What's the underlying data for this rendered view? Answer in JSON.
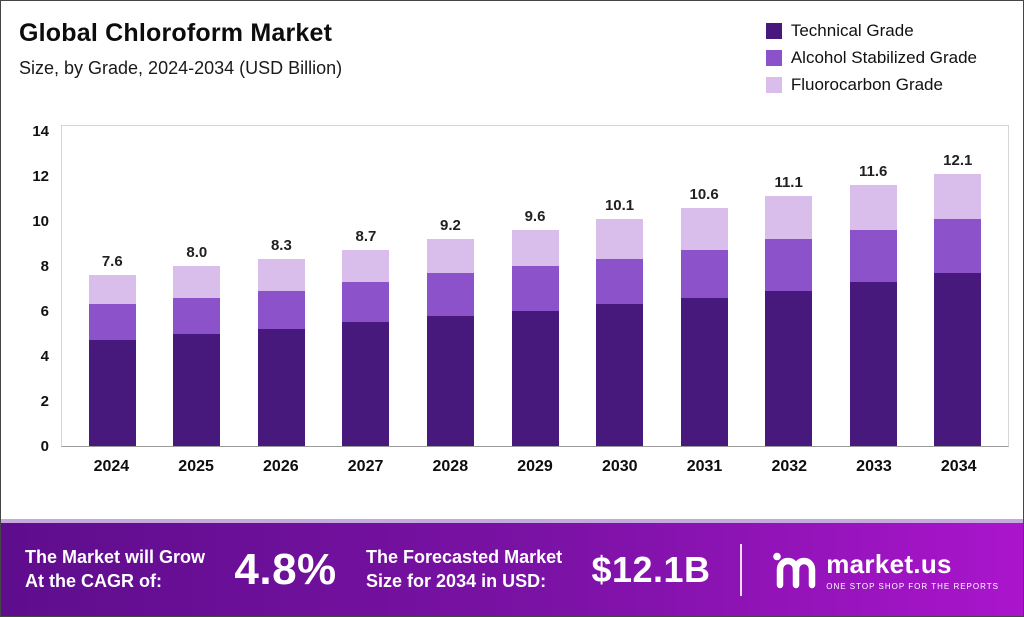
{
  "header": {
    "title": "Global Chloroform Market",
    "subtitle": "Size, by Grade, 2024-2034 (USD Billion)"
  },
  "legend": [
    {
      "label": "Technical Grade",
      "color": "#47197d"
    },
    {
      "label": "Alcohol Stabilized Grade",
      "color": "#8c52c9"
    },
    {
      "label": "Fluorocarbon Grade",
      "color": "#d9bdea"
    }
  ],
  "chart_data": {
    "type": "bar",
    "stacked": true,
    "title": "Global Chloroform Market",
    "subtitle": "Size, by Grade, 2024-2034 (USD Billion)",
    "xlabel": "",
    "ylabel": "USD Billion",
    "ylim": [
      0,
      14
    ],
    "yticks": [
      0,
      2,
      4,
      6,
      8,
      10,
      12,
      14
    ],
    "grid": false,
    "legend_position": "top-right",
    "categories": [
      "2024",
      "2025",
      "2026",
      "2027",
      "2028",
      "2029",
      "2030",
      "2031",
      "2032",
      "2033",
      "2034"
    ],
    "series": [
      {
        "name": "Technical Grade",
        "color": "#47197d",
        "values": [
          4.7,
          5.0,
          5.2,
          5.5,
          5.8,
          6.0,
          6.3,
          6.6,
          6.9,
          7.3,
          7.7
        ]
      },
      {
        "name": "Alcohol Stabilized Grade",
        "color": "#8c52c9",
        "values": [
          1.6,
          1.6,
          1.7,
          1.8,
          1.9,
          2.0,
          2.0,
          2.1,
          2.3,
          2.3,
          2.4
        ]
      },
      {
        "name": "Fluorocarbon Grade",
        "color": "#d9bdea",
        "values": [
          1.3,
          1.4,
          1.4,
          1.4,
          1.5,
          1.6,
          1.8,
          1.9,
          1.9,
          2.0,
          2.0
        ]
      }
    ],
    "totals": [
      "7.6",
      "8.0",
      "8.3",
      "8.7",
      "9.2",
      "9.6",
      "10.1",
      "10.6",
      "11.1",
      "11.6",
      "12.1"
    ]
  },
  "banner": {
    "cagr_label_line1": "The Market will Grow",
    "cagr_label_line2": "At the CAGR of:",
    "cagr_value": "4.8%",
    "forecast_label_line1": "The Forecasted Market",
    "forecast_label_line2": "Size for 2034 in USD:",
    "forecast_value": "$12.1B",
    "brand": "market.us",
    "brand_tagline": "ONE STOP SHOP FOR THE REPORTS"
  }
}
